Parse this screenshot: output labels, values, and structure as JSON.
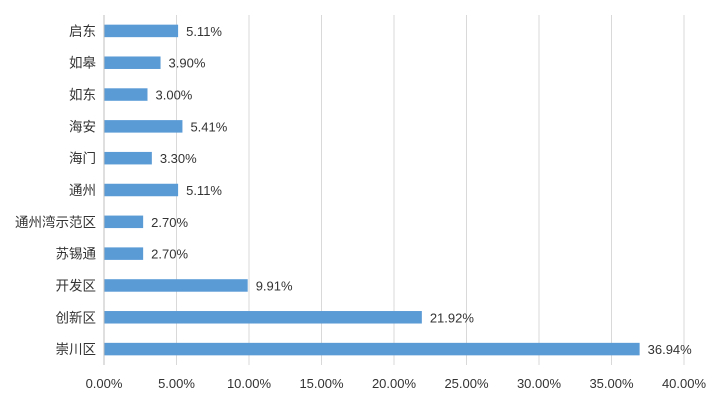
{
  "chart_data": {
    "type": "bar",
    "orientation": "horizontal",
    "categories": [
      "启东",
      "如皋",
      "如东",
      "海安",
      "海门",
      "通州",
      "通州湾示范区",
      "苏锡通",
      "开发区",
      "创新区",
      "崇川区"
    ],
    "values": [
      5.11,
      3.9,
      3.0,
      5.41,
      3.3,
      5.11,
      2.7,
      2.7,
      9.91,
      21.92,
      36.94
    ],
    "value_labels": [
      "5.11%",
      "3.90%",
      "3.00%",
      "5.41%",
      "3.30%",
      "5.11%",
      "2.70%",
      "2.70%",
      "9.91%",
      "21.92%",
      "36.94%"
    ],
    "xlim": [
      0,
      40
    ],
    "xticks": [
      0,
      5,
      10,
      15,
      20,
      25,
      30,
      35,
      40
    ],
    "xtick_labels": [
      "0.00%",
      "5.00%",
      "10.00%",
      "15.00%",
      "20.00%",
      "25.00%",
      "30.00%",
      "35.00%",
      "40.00%"
    ],
    "bar_color": "#5b9bd5",
    "grid": "vertical",
    "legend": "none"
  }
}
